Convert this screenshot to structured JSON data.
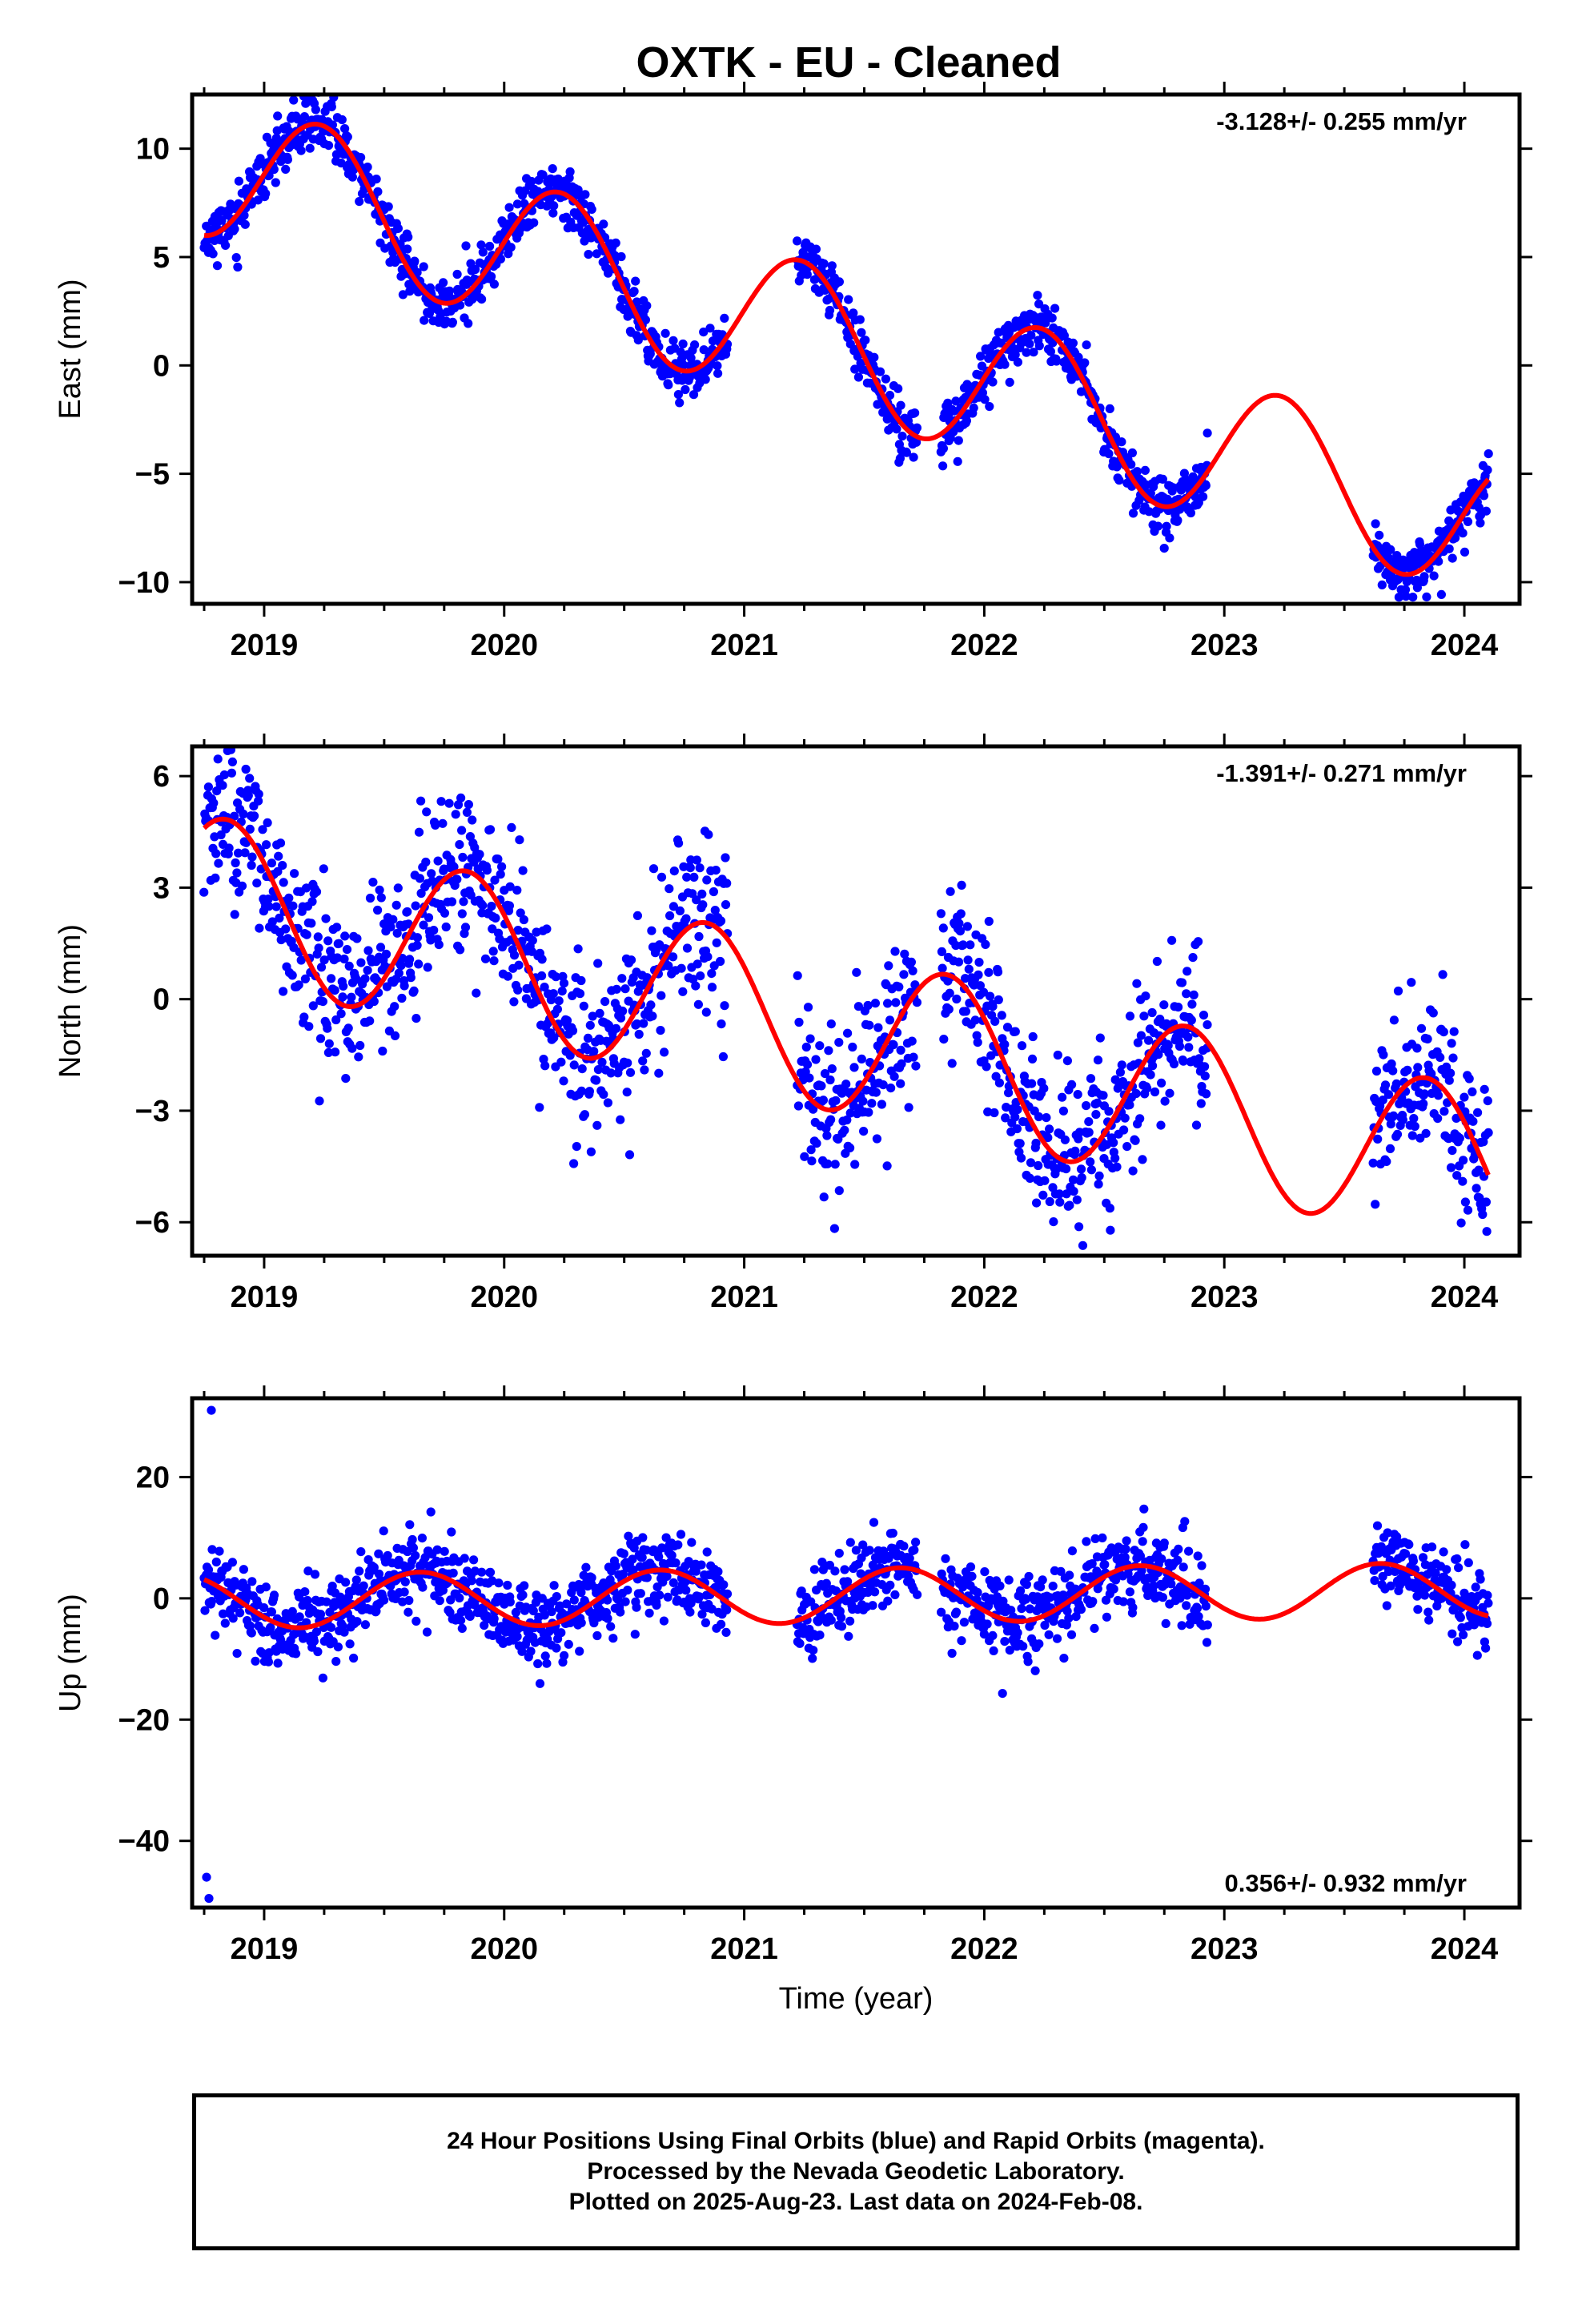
{
  "title": "OXTK  - EU - Cleaned",
  "chart_data": [
    {
      "type": "scatter",
      "panel": "east",
      "ylabel": "East (mm)",
      "xlabel": "",
      "xlim": [
        2018.7,
        2024.23
      ],
      "ylim": [
        -11.0,
        12.5
      ],
      "yticks": [
        10,
        5,
        0,
        -5,
        -10
      ],
      "ytick_labels": [
        "10",
        "5",
        "0",
        "−5",
        "−10"
      ],
      "xticks": [
        2019,
        2020,
        2021,
        2022,
        2023,
        2024
      ],
      "xtick_labels": [
        "2019",
        "2020",
        "2021",
        "2022",
        "2023",
        "2024"
      ],
      "annotation": "-3.128+/- 0.255 mm/yr",
      "annotation_position": "top-right",
      "trend_rate_mm_per_yr": -3.128,
      "fit": {
        "base": 9.3,
        "ref_year": 2018.75,
        "rate": -3.128,
        "annual_cos": 0.3,
        "annual_sin": 3.3,
        "semiannual_cos": 0.0,
        "semiannual_sin": 0.0
      },
      "noise_sd": 0.65,
      "segments": [
        [
          2018.75,
          2020.93
        ],
        [
          2021.22,
          2021.72
        ],
        [
          2021.82,
          2022.93
        ],
        [
          2023.62,
          2024.1
        ]
      ],
      "points_per_year": 330,
      "seed": 11
    },
    {
      "type": "scatter",
      "panel": "north",
      "ylabel": "North (mm)",
      "xlabel": "",
      "xlim": [
        2018.7,
        2024.23
      ],
      "ylim": [
        -6.9,
        6.8
      ],
      "yticks": [
        6,
        3,
        0,
        -3,
        -6
      ],
      "ytick_labels": [
        "6",
        "3",
        "0",
        "−3",
        "−6"
      ],
      "xticks": [
        2019,
        2020,
        2021,
        2022,
        2023,
        2024
      ],
      "xtick_labels": [
        "2019",
        "2020",
        "2021",
        "2022",
        "2023",
        "2024"
      ],
      "annotation": "-1.391+/- 0.271 mm/yr",
      "annotation_position": "top-right",
      "trend_rate_mm_per_yr": -1.391,
      "fit": {
        "base": 2.8,
        "ref_year": 2018.75,
        "rate": -1.391,
        "annual_cos": 1.2,
        "annual_sin": -1.8,
        "semiannual_cos": 0.0,
        "semiannual_sin": 0.0
      },
      "noise_sd": 1.1,
      "segments": [
        [
          2018.75,
          2020.93
        ],
        [
          2021.22,
          2021.72
        ],
        [
          2021.82,
          2022.93
        ],
        [
          2023.62,
          2024.1
        ]
      ],
      "points_per_year": 330,
      "seed": 23
    },
    {
      "type": "scatter",
      "panel": "up",
      "ylabel": "Up (mm)",
      "xlabel": "Time (year)",
      "xlim": [
        2018.7,
        2024.23
      ],
      "ylim": [
        -51.0,
        33.0
      ],
      "yticks": [
        20,
        0,
        -20,
        -40
      ],
      "ytick_labels": [
        "20",
        "0",
        "−20",
        "−40"
      ],
      "xticks": [
        2019,
        2020,
        2021,
        2022,
        2023,
        2024
      ],
      "xtick_labels": [
        "2019",
        "2020",
        "2021",
        "2022",
        "2023",
        "2024"
      ],
      "annotation": "0.356+/- 0.932 mm/yr",
      "annotation_position": "bottom-right",
      "trend_rate_mm_per_yr": 0.356,
      "fit": {
        "base": -0.5,
        "ref_year": 2018.75,
        "rate": 0.356,
        "annual_cos": -2.7,
        "annual_sin": -3.6,
        "semiannual_cos": 0.0,
        "semiannual_sin": 0.0
      },
      "noise_sd": 3.3,
      "segments": [
        [
          2018.75,
          2020.93
        ],
        [
          2021.22,
          2021.72
        ],
        [
          2021.82,
          2022.93
        ],
        [
          2023.62,
          2024.1
        ]
      ],
      "points_per_year": 330,
      "seed": 37,
      "outliers": [
        {
          "x": 2018.78,
          "y": 31.0
        },
        {
          "x": 2018.76,
          "y": -46.0
        },
        {
          "x": 2018.77,
          "y": -49.5
        }
      ]
    }
  ],
  "colors": {
    "points": "#0000ff",
    "fit": "#ff0000",
    "axis": "#000000"
  },
  "footer": {
    "line1": "24 Hour Positions Using Final Orbits (blue) and Rapid Orbits (magenta).",
    "line2": "Processed by the Nevada Geodetic Laboratory.",
    "line3": "Plotted on 2025-Aug-23. Last data on 2024-Feb-08."
  }
}
